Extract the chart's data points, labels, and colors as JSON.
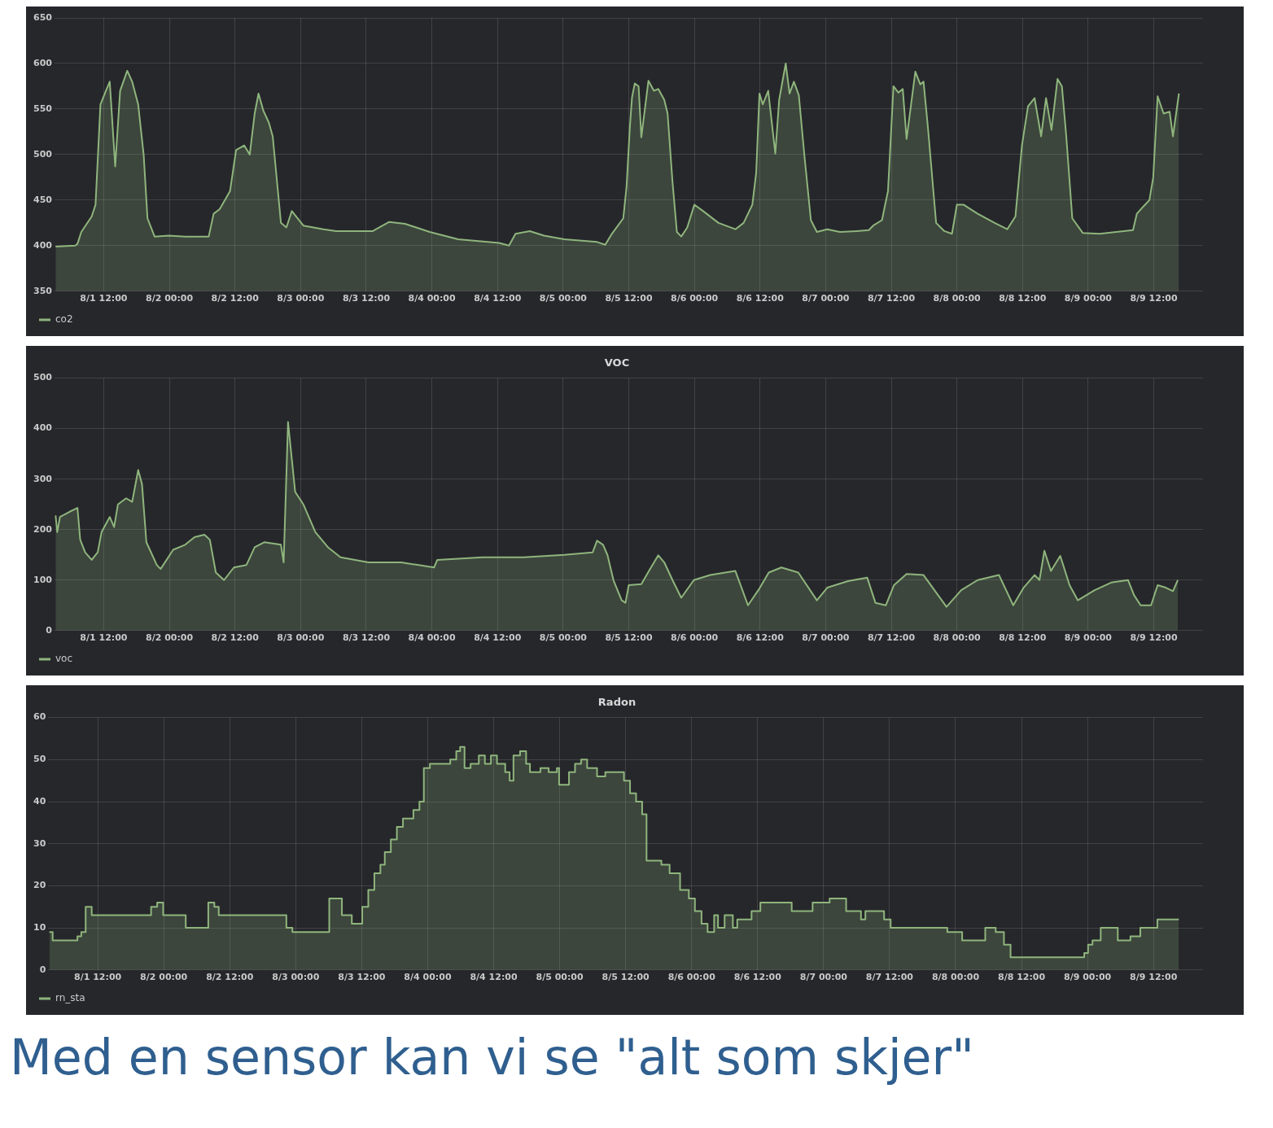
{
  "chart_data": [
    {
      "type": "area",
      "grid": true,
      "legend": "bottom left",
      "xlim": [
        "--08-01T03:00",
        "--08-09T21:00"
      ],
      "ylim": [
        350,
        650
      ],
      "yticks": [
        350,
        400,
        450,
        500,
        550,
        600,
        650
      ],
      "xticks": [
        {
          "value": "--08-01T12:00",
          "label": "8/1 12:00"
        },
        {
          "value": "--08-02T00:00",
          "label": "8/2 00:00"
        },
        {
          "value": "--08-02T12:00",
          "label": "8/2 12:00"
        },
        {
          "value": "--08-03T00:00",
          "label": "8/3 00:00"
        },
        {
          "value": "--08-03T12:00",
          "label": "8/3 12:00"
        },
        {
          "value": "--08-04T00:00",
          "label": "8/4 00:00"
        },
        {
          "value": "--08-04T12:00",
          "label": "8/4 12:00"
        },
        {
          "value": "--08-05T00:00",
          "label": "8/5 00:00"
        },
        {
          "value": "--08-05T12:00",
          "label": "8/5 12:00"
        },
        {
          "value": "--08-06T00:00",
          "label": "8/6 00:00"
        },
        {
          "value": "--08-06T12:00",
          "label": "8/6 12:00"
        },
        {
          "value": "--08-07T00:00",
          "label": "8/7 00:00"
        },
        {
          "value": "--08-07T12:00",
          "label": "8/7 12:00"
        },
        {
          "value": "--08-08T00:00",
          "label": "8/8 00:00"
        },
        {
          "value": "--08-08T12:00",
          "label": "8/8 12:00"
        },
        {
          "value": "--08-09T00:00",
          "label": "8/9 00:00"
        },
        {
          "value": "--08-09T12:00",
          "label": "8/9 12:00"
        }
      ],
      "series": [
        {
          "name": "co2",
          "color": "#8fb57d",
          "x": [
            "--08-01T03:12",
            "--08-01T06:48",
            "--08-01T07:12",
            "--08-01T07:54",
            "--08-01T09:48",
            "--08-01T10:30",
            "--08-01T11:24",
            "--08-01T12:24",
            "--08-01T13:06",
            "--08-01T14:06",
            "--08-01T15:00",
            "--08-01T16:18",
            "--08-01T17:12",
            "--08-01T18:18",
            "--08-01T19:18",
            "--08-01T20:00",
            "--08-01T21:18",
            "--08-01T23:54",
            "--08-02T02:54",
            "--08-02T07:12",
            "--08-02T08:06",
            "--08-02T09:12",
            "--08-02T11:06",
            "--08-02T12:12",
            "--08-02T13:42",
            "--08-02T14:42",
            "--08-02T15:36",
            "--08-02T16:18",
            "--08-02T17:12",
            "--08-02T18:12",
            "--08-02T18:54",
            "--08-02T20:24",
            "--08-02T21:24",
            "--08-02T22:24",
            "--08-03T00:30",
            "--08-03T04:12",
            "--08-03T06:30",
            "--08-03T13:12",
            "--08-03T16:12",
            "--08-03T19:06",
            "--08-03T23:36",
            "--08-04T04:48",
            "--08-04T12:18",
            "--08-04T14:06",
            "--08-04T15:18",
            "--08-04T17:54",
            "--08-04T20:30",
            "--08-05T00:12",
            "--08-05T06:12",
            "--08-05T07:42",
            "--08-05T08:48",
            "--08-05T11:00",
            "--08-05T11:36",
            "--08-05T12:12",
            "--08-05T12:36",
            "--08-05T13:06",
            "--08-05T13:48",
            "--08-05T14:18",
            "--08-05T15:36",
            "--08-05T16:36",
            "--08-05T17:24",
            "--08-05T18:30",
            "--08-05T19:06",
            "--08-05T20:00",
            "--08-05T20:48",
            "--08-05T21:36",
            "--08-05T22:42",
            "--08-06T00:00",
            "--08-06T01:48",
            "--08-06T04:24",
            "--08-06T07:30",
            "--08-06T09:00",
            "--08-06T10:36",
            "--08-06T11:18",
            "--08-06T11:54",
            "--08-06T12:30",
            "--08-06T13:30",
            "--08-06T14:48",
            "--08-06T15:30",
            "--08-06T16:42",
            "--08-06T17:24",
            "--08-06T18:12",
            "--08-06T19:06",
            "--08-06T20:06",
            "--08-06T21:18",
            "--08-06T22:24",
            "--08-07T00:18",
            "--08-07T02:36",
            "--08-07T05:42",
            "--08-07T07:54",
            "--08-07T08:42",
            "--08-07T10:18",
            "--08-07T11:24",
            "--08-07T12:24",
            "--08-07T13:18",
            "--08-07T14:06",
            "--08-07T14:48",
            "--08-07T16:24",
            "--08-07T17:18",
            "--08-07T17:54",
            "--08-07T18:42",
            "--08-07T20:12",
            "--08-07T21:42",
            "--08-07T23:06",
            "--08-08T00:00",
            "--08-08T01:12",
            "--08-08T03:48",
            "--08-08T06:54",
            "--08-08T09:12",
            "--08-08T10:42",
            "--08-08T11:54",
            "--08-08T13:00",
            "--08-08T14:12",
            "--08-08T15:24",
            "--08-08T16:18",
            "--08-08T17:18",
            "--08-08T18:24",
            "--08-08T19:12",
            "--08-08T20:00",
            "--08-08T21:06",
            "--08-08T23:00",
            "--08-09T02:06",
            "--08-09T08:12",
            "--08-09T08:54",
            "--08-09T10:06",
            "--08-09T11:12",
            "--08-09T11:54",
            "--08-09T12:42",
            "--08-09T13:48",
            "--08-09T14:54",
            "--08-09T15:30",
            "--08-09T16:36"
          ],
          "values": [
            399,
            400,
            402,
            415,
            432,
            445,
            555,
            570,
            580,
            487,
            570,
            592,
            580,
            555,
            500,
            430,
            410,
            411,
            410,
            410,
            435,
            440,
            460,
            505,
            510,
            500,
            545,
            567,
            548,
            535,
            520,
            425,
            420,
            438,
            422,
            418,
            416,
            416,
            426,
            424,
            415,
            407,
            403,
            400,
            413,
            416,
            411,
            407,
            404,
            401,
            412,
            430,
            465,
            530,
            563,
            578,
            575,
            519,
            581,
            570,
            572,
            560,
            545,
            470,
            415,
            410,
            420,
            445,
            437,
            425,
            418,
            425,
            445,
            480,
            567,
            555,
            570,
            501,
            560,
            600,
            567,
            580,
            565,
            500,
            428,
            415,
            418,
            415,
            416,
            417,
            422,
            428,
            460,
            575,
            568,
            572,
            517,
            591,
            577,
            580,
            530,
            425,
            416,
            413,
            445,
            445,
            435,
            425,
            418,
            432,
            510,
            553,
            562,
            520,
            562,
            527,
            583,
            575,
            520,
            430,
            414,
            413,
            417,
            435,
            443,
            450,
            475,
            564,
            545,
            547,
            520,
            567
          ]
        }
      ]
    },
    {
      "type": "area",
      "title": "VOC",
      "grid": true,
      "legend": "bottom left",
      "xlim": [
        "--08-01T03:00",
        "--08-09T21:00"
      ],
      "ylim": [
        0,
        500
      ],
      "yticks": [
        0,
        100,
        200,
        300,
        400,
        500
      ],
      "xticks": [
        {
          "value": "--08-01T12:00",
          "label": "8/1 12:00"
        },
        {
          "value": "--08-02T00:00",
          "label": "8/2 00:00"
        },
        {
          "value": "--08-02T12:00",
          "label": "8/2 12:00"
        },
        {
          "value": "--08-03T00:00",
          "label": "8/3 00:00"
        },
        {
          "value": "--08-03T12:00",
          "label": "8/3 12:00"
        },
        {
          "value": "--08-04T00:00",
          "label": "8/4 00:00"
        },
        {
          "value": "--08-04T12:00",
          "label": "8/4 12:00"
        },
        {
          "value": "--08-05T00:00",
          "label": "8/5 00:00"
        },
        {
          "value": "--08-05T12:00",
          "label": "8/5 12:00"
        },
        {
          "value": "--08-06T00:00",
          "label": "8/6 00:00"
        },
        {
          "value": "--08-06T12:00",
          "label": "8/6 12:00"
        },
        {
          "value": "--08-07T00:00",
          "label": "8/7 00:00"
        },
        {
          "value": "--08-07T12:00",
          "label": "8/7 12:00"
        },
        {
          "value": "--08-08T00:00",
          "label": "8/8 00:00"
        },
        {
          "value": "--08-08T12:00",
          "label": "8/8 12:00"
        },
        {
          "value": "--08-09T00:00",
          "label": "8/9 00:00"
        },
        {
          "value": "--08-09T12:00",
          "label": "8/9 12:00"
        }
      ],
      "series": [
        {
          "name": "voc",
          "color": "#8fb57d",
          "x": [
            "--08-01T03:12",
            "--08-01T03:30",
            "--08-01T04:00",
            "--08-01T05:42",
            "--08-01T07:12",
            "--08-01T07:42",
            "--08-01T08:36",
            "--08-01T09:48",
            "--08-01T10:54",
            "--08-01T11:36",
            "--08-01T13:06",
            "--08-01T13:54",
            "--08-01T14:36",
            "--08-01T16:06",
            "--08-01T17:12",
            "--08-01T18:18",
            "--08-01T19:00",
            "--08-01T19:48",
            "--08-01T21:42",
            "--08-01T22:24",
            "--08-02T00:42",
            "--08-02T02:54",
            "--08-02T04:36",
            "--08-02T06:24",
            "--08-02T07:24",
            "--08-02T08:30",
            "--08-02T10:00",
            "--08-02T11:48",
            "--08-02T14:06",
            "--08-02T15:36",
            "--08-02T17:24",
            "--08-02T20:24",
            "--08-02T20:54",
            "--08-02T21:42",
            "--08-02T23:00",
            "--08-03T00:30",
            "--08-03T02:42",
            "--08-03T05:00",
            "--08-03T07:18",
            "--08-03T12:24",
            "--08-03T18:24",
            "--08-04T00:24",
            "--08-04T01:00",
            "--08-04T09:18",
            "--08-04T16:48",
            "--08-05T00:12",
            "--08-05T05:24",
            "--08-05T06:12",
            "--08-05T07:18",
            "--08-05T08:06",
            "--08-05T09:12",
            "--08-05T10:42",
            "--08-05T11:24",
            "--08-05T12:00",
            "--08-05T14:18",
            "--08-05T15:48",
            "--08-05T17:24",
            "--08-05T18:30",
            "--08-05T20:00",
            "--08-05T21:36",
            "--08-05T23:54",
            "--08-06T02:54",
            "--08-06T07:30",
            "--08-06T09:48",
            "--08-06T11:42",
            "--08-06T13:36",
            "--08-06T15:54",
            "--08-06T19:00",
            "--08-06T22:24",
            "--08-07T00:18",
            "--08-07T04:06",
            "--08-07T07:36",
            "--08-07T09:06",
            "--08-07T11:00",
            "--08-07T12:30",
            "--08-07T14:48",
            "--08-07T17:54",
            "--08-07T22:06",
            "--08-08T00:48",
            "--08-08T03:48",
            "--08-08T07:42",
            "--08-08T10:18",
            "--08-08T12:12",
            "--08-08T14:12",
            "--08-08T15:06",
            "--08-08T16:00",
            "--08-08T17:12",
            "--08-08T18:54",
            "--08-08T20:36",
            "--08-08T22:06",
            "--08-09T01:12",
            "--08-09T04:12",
            "--08-09T07:18",
            "--08-09T08:24",
            "--08-09T09:36",
            "--08-09T11:30",
            "--08-09T12:42",
            "--08-09T14:12",
            "--08-09T15:30",
            "--08-09T16:24"
          ],
          "values": [
            228,
            195,
            225,
            235,
            243,
            180,
            155,
            140,
            155,
            195,
            225,
            205,
            250,
            262,
            255,
            318,
            290,
            175,
            130,
            122,
            160,
            170,
            185,
            190,
            180,
            115,
            100,
            125,
            130,
            165,
            175,
            170,
            135,
            413,
            275,
            250,
            195,
            165,
            145,
            135,
            135,
            125,
            140,
            145,
            145,
            150,
            155,
            178,
            170,
            150,
            100,
            60,
            55,
            90,
            92,
            120,
            149,
            135,
            100,
            65,
            100,
            110,
            118,
            50,
            80,
            115,
            125,
            115,
            60,
            85,
            98,
            105,
            55,
            50,
            90,
            112,
            110,
            47,
            80,
            100,
            110,
            50,
            85,
            110,
            100,
            158,
            118,
            148,
            90,
            60,
            80,
            95,
            100,
            70,
            50,
            50,
            90,
            85,
            78,
            100
          ]
        }
      ]
    },
    {
      "type": "area",
      "title": "Radon",
      "grid": true,
      "legend": "bottom left",
      "xlim": [
        "--08-01T03:00",
        "--08-09T21:00"
      ],
      "ylim": [
        0,
        60
      ],
      "yticks": [
        0,
        10,
        20,
        30,
        40,
        50,
        60
      ],
      "xticks": [
        {
          "value": "--08-01T12:00",
          "label": "8/1 12:00"
        },
        {
          "value": "--08-02T00:00",
          "label": "8/2 00:00"
        },
        {
          "value": "--08-02T12:00",
          "label": "8/2 12:00"
        },
        {
          "value": "--08-03T00:00",
          "label": "8/3 00:00"
        },
        {
          "value": "--08-03T12:00",
          "label": "8/3 12:00"
        },
        {
          "value": "--08-04T00:00",
          "label": "8/4 00:00"
        },
        {
          "value": "--08-04T12:00",
          "label": "8/4 12:00"
        },
        {
          "value": "--08-05T00:00",
          "label": "8/5 00:00"
        },
        {
          "value": "--08-05T12:00",
          "label": "8/5 12:00"
        },
        {
          "value": "--08-06T00:00",
          "label": "8/6 00:00"
        },
        {
          "value": "--08-06T12:00",
          "label": "8/6 12:00"
        },
        {
          "value": "--08-07T00:00",
          "label": "8/7 00:00"
        },
        {
          "value": "--08-07T12:00",
          "label": "8/7 12:00"
        },
        {
          "value": "--08-08T00:00",
          "label": "8/8 00:00"
        },
        {
          "value": "--08-08T12:00",
          "label": "8/8 12:00"
        },
        {
          "value": "--08-09T00:00",
          "label": "8/9 00:00"
        },
        {
          "value": "--08-09T12:00",
          "label": "8/9 12:00"
        }
      ],
      "annotations": [
        "Med en sensor kan vi se \"alt som skjer\""
      ],
      "series": [
        {
          "name": "rn_sta",
          "color": "#8fb57d",
          "x": [
            "--08-01T03:12",
            "--08-01T03:48",
            "--08-01T03:48",
            "--08-01T08:18",
            "--08-01T08:18",
            "--08-01T09:00",
            "--08-01T09:00",
            "--08-01T09:48",
            "--08-01T09:48",
            "--08-01T10:54",
            "--08-01T10:54",
            "--08-01T21:42",
            "--08-01T21:42",
            "--08-01T22:48",
            "--08-01T22:48",
            "--08-01T23:54",
            "--08-01T23:54",
            "--08-02T04:00",
            "--08-02T04:00",
            "--08-02T08:06",
            "--08-02T08:06",
            "--08-02T09:12",
            "--08-02T09:12",
            "--08-02T10:00",
            "--08-02T10:00",
            "--08-02T22:18",
            "--08-02T22:18",
            "--08-02T23:24",
            "--08-02T23:24",
            "--08-03T06:06",
            "--08-03T06:06",
            "--08-03T08:24",
            "--08-03T08:24",
            "--08-03T10:12",
            "--08-03T10:12",
            "--08-03T12:06",
            "--08-03T12:06",
            "--08-03T13:12",
            "--08-03T13:12",
            "--08-03T14:18",
            "--08-03T14:18",
            "--08-03T15:24",
            "--08-03T15:24",
            "--08-03T16:12",
            "--08-03T16:12",
            "--08-03T17:18",
            "--08-03T17:18",
            "--08-03T18:24",
            "--08-03T18:24",
            "--08-03T19:30",
            "--08-03T19:30",
            "--08-03T21:24",
            "--08-03T21:24",
            "--08-03T22:30",
            "--08-03T22:30",
            "--08-03T23:18",
            "--08-03T23:18",
            "--08-04T00:24",
            "--08-04T00:24",
            "--08-04T04:06",
            "--08-04T04:06",
            "--08-04T05:12",
            "--08-04T05:12",
            "--08-04T05:54",
            "--08-04T05:54",
            "--08-04T06:42",
            "--08-04T06:42",
            "--08-04T07:48",
            "--08-04T07:48",
            "--08-04T09:18",
            "--08-04T09:18",
            "--08-04T10:24",
            "--08-04T10:24",
            "--08-04T11:30",
            "--08-04T11:30",
            "--08-04T12:36",
            "--08-04T12:36",
            "--08-04T14:06",
            "--08-04T14:06",
            "--08-04T14:54",
            "--08-04T14:54",
            "--08-04T15:36",
            "--08-04T15:36",
            "--08-04T16:48",
            "--08-04T16:48",
            "--08-04T17:54",
            "--08-04T17:54",
            "--08-04T18:36",
            "--08-04T18:36",
            "--08-04T20:30",
            "--08-04T20:30",
            "--08-04T22:00",
            "--08-04T22:00",
            "--08-04T23:30",
            "--08-04T23:30",
            "--08-04T23:54",
            "--08-04T23:54",
            "--08-05T01:42",
            "--08-05T01:42",
            "--08-05T02:48",
            "--08-05T02:48",
            "--08-05T03:54",
            "--08-05T03:54",
            "--08-05T05:00",
            "--08-05T05:00",
            "--08-05T06:48",
            "--08-05T06:48",
            "--08-05T08:18",
            "--08-05T08:18",
            "--08-05T11:42",
            "--08-05T11:42",
            "--08-05T12:48",
            "--08-05T12:48",
            "--08-05T13:54",
            "--08-05T13:54",
            "--08-05T15:00",
            "--08-05T15:00",
            "--08-05T15:48",
            "--08-05T15:48",
            "--08-05T18:30",
            "--08-05T18:30",
            "--08-05T20:00",
            "--08-05T20:00",
            "--08-05T21:54",
            "--08-05T21:54",
            "--08-05T23:30",
            "--08-05T23:30",
            "--08-06T00:36",
            "--08-06T00:36",
            "--08-06T01:48",
            "--08-06T01:48",
            "--08-06T02:54",
            "--08-06T02:54",
            "--08-06T04:06",
            "--08-06T04:06",
            "--08-06T04:48",
            "--08-06T04:48",
            "--08-06T06:00",
            "--08-06T06:00",
            "--08-06T07:30",
            "--08-06T07:30",
            "--08-06T08:18",
            "--08-06T08:18",
            "--08-06T10:54",
            "--08-06T10:54",
            "--08-06T12:30",
            "--08-06T12:30",
            "--08-06T18:12",
            "--08-06T18:12",
            "--08-06T22:00",
            "--08-06T22:00",
            "--08-07T01:06",
            "--08-07T01:06",
            "--08-07T04:06",
            "--08-07T04:06",
            "--08-07T06:48",
            "--08-07T06:48",
            "--08-07T07:36",
            "--08-07T07:36",
            "--08-07T11:00",
            "--08-07T11:00",
            "--08-07T12:12",
            "--08-07T12:12",
            "--08-07T22:30",
            "--08-07T22:30",
            "--08-08T01:12",
            "--08-08T01:12",
            "--08-08T05:24",
            "--08-08T05:24",
            "--08-08T07:18",
            "--08-08T07:18",
            "--08-08T08:48",
            "--08-08T08:48",
            "--08-08T10:00",
            "--08-08T10:00",
            "--08-08T23:24",
            "--08-08T23:24",
            "--08-09T00:06",
            "--08-09T00:06",
            "--08-09T00:54",
            "--08-09T00:54",
            "--08-09T02:24",
            "--08-09T02:24",
            "--08-09T05:30",
            "--08-09T05:30",
            "--08-09T07:48",
            "--08-09T07:48",
            "--08-09T09:36",
            "--08-09T09:36",
            "--08-09T12:42",
            "--08-09T12:42",
            "--08-09T16:36"
          ],
          "values": [
            9,
            9,
            7,
            7,
            8,
            8,
            9,
            9,
            15,
            15,
            13,
            13,
            15,
            15,
            16,
            16,
            13,
            13,
            10,
            10,
            16,
            16,
            15,
            15,
            13,
            13,
            10,
            10,
            9,
            9,
            17,
            17,
            13,
            13,
            11,
            11,
            15,
            15,
            19,
            19,
            23,
            23,
            25,
            25,
            28,
            28,
            31,
            31,
            34,
            34,
            36,
            36,
            38,
            38,
            40,
            40,
            48,
            48,
            49,
            49,
            50,
            50,
            52,
            52,
            53,
            53,
            48,
            48,
            49,
            49,
            51,
            51,
            49,
            49,
            51,
            51,
            49,
            49,
            47,
            47,
            45,
            45,
            51,
            51,
            52,
            52,
            49,
            49,
            47,
            47,
            48,
            48,
            47,
            47,
            48,
            48,
            44,
            44,
            47,
            47,
            49,
            49,
            50,
            50,
            48,
            48,
            46,
            46,
            47,
            47,
            45,
            45,
            42,
            42,
            40,
            40,
            37,
            37,
            26,
            26,
            25,
            25,
            23,
            23,
            19,
            19,
            17,
            17,
            14,
            14,
            11,
            11,
            9,
            9,
            13,
            13,
            10,
            10,
            13,
            13,
            10,
            10,
            12,
            12,
            14,
            14,
            16,
            16,
            14,
            14,
            16,
            16,
            17,
            17,
            14,
            14,
            12,
            12,
            14,
            14,
            12,
            12,
            10,
            10,
            9,
            9,
            7,
            7,
            10,
            10,
            9,
            9,
            6,
            6,
            3,
            3,
            4,
            4,
            6,
            6,
            7,
            7,
            10,
            10,
            7,
            7,
            8,
            8,
            10,
            10,
            12,
            12
          ]
        }
      ]
    }
  ]
}
